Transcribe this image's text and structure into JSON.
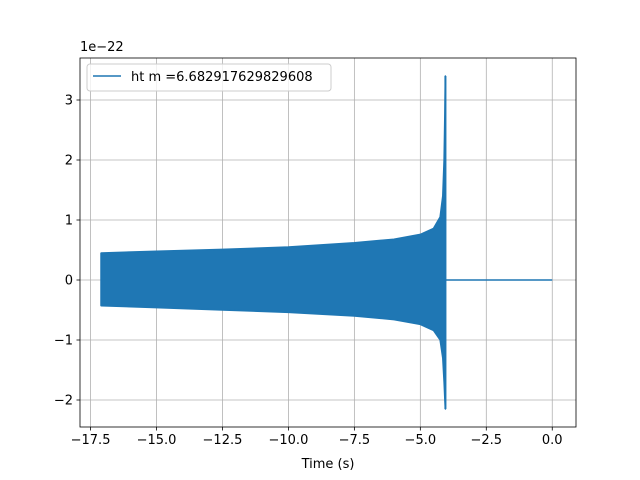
{
  "chart_data": {
    "type": "line",
    "xlabel": "Time (s)",
    "ylabel": "",
    "offset_text": "1e−22",
    "xlim": [
      -17.9,
      0.9
    ],
    "ylim": [
      -2.45,
      3.7
    ],
    "xticks": [
      -17.5,
      -15.0,
      -12.5,
      -10.0,
      -7.5,
      -5.0,
      -2.5,
      0.0
    ],
    "xtick_labels": [
      "−17.5",
      "−15.0",
      "−12.5",
      "−10.0",
      "−7.5",
      "−5.0",
      "−2.5",
      "0.0"
    ],
    "yticks": [
      -2,
      -1,
      0,
      1,
      2,
      3
    ],
    "ytick_labels": [
      "−2",
      "−1",
      "0",
      "1",
      "2",
      "3"
    ],
    "grid": true,
    "legend_position": "top-left",
    "series": [
      {
        "name": "ht m =6.682917629829608",
        "color": "#1f77b4",
        "signal_start": -17.1,
        "merger_time": -4.05,
        "signal_end": 0.0,
        "initial_amplitude": 0.45,
        "peak_max": 3.4,
        "peak_min": -2.15,
        "upper_envelope": [
          [
            -17.1,
            0.45
          ],
          [
            -15.0,
            0.48
          ],
          [
            -12.5,
            0.51
          ],
          [
            -10.0,
            0.55
          ],
          [
            -7.5,
            0.62
          ],
          [
            -6.0,
            0.68
          ],
          [
            -5.0,
            0.76
          ],
          [
            -4.5,
            0.86
          ],
          [
            -4.25,
            1.05
          ],
          [
            -4.15,
            1.4
          ],
          [
            -4.1,
            2.0
          ],
          [
            -4.07,
            2.8
          ],
          [
            -4.05,
            3.4
          ]
        ],
        "lower_envelope": [
          [
            -17.1,
            -0.43
          ],
          [
            -15.0,
            -0.46
          ],
          [
            -12.5,
            -0.5
          ],
          [
            -10.0,
            -0.54
          ],
          [
            -7.5,
            -0.6
          ],
          [
            -6.0,
            -0.66
          ],
          [
            -5.0,
            -0.74
          ],
          [
            -4.5,
            -0.84
          ],
          [
            -4.25,
            -1.0
          ],
          [
            -4.15,
            -1.3
          ],
          [
            -4.1,
            -1.7
          ],
          [
            -4.07,
            -2.0
          ],
          [
            -4.05,
            -2.15
          ]
        ]
      }
    ]
  }
}
